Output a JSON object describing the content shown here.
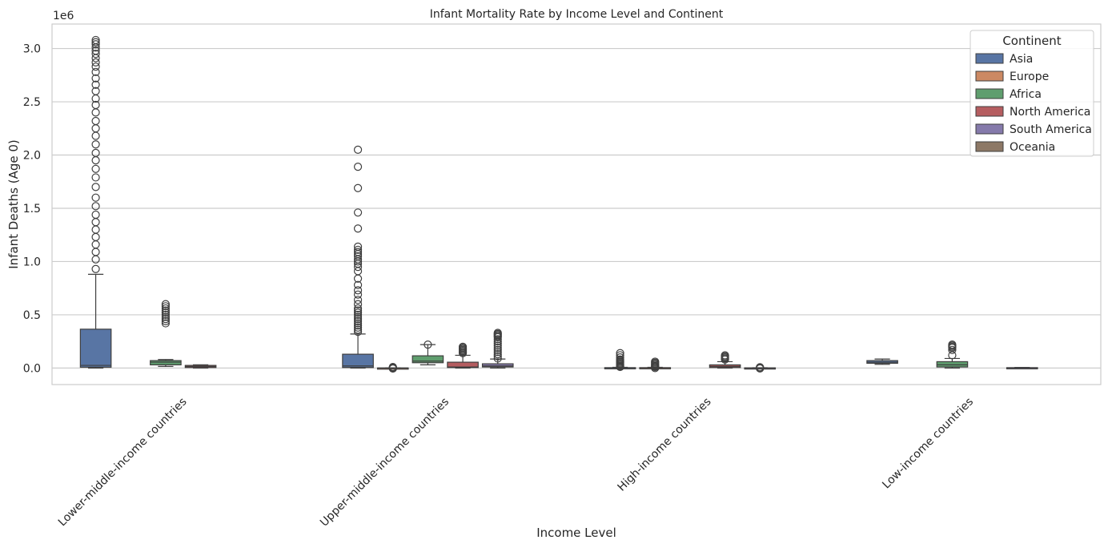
{
  "chart_data": {
    "type": "box",
    "title": "Infant Mortality Rate by Income Level and Continent",
    "xlabel": "Income Level",
    "ylabel": "Infant Deaths (Age 0)",
    "y_scale_label": "1e6",
    "y_unit": 1000000,
    "ylim": [
      -0.155,
      3.23
    ],
    "yticks": [
      0.0,
      0.5,
      1.0,
      1.5,
      2.0,
      2.5,
      3.0
    ],
    "ytick_labels": [
      "0.0",
      "0.5",
      "1.0",
      "1.5",
      "2.0",
      "2.5",
      "3.0"
    ],
    "grid": "y",
    "categories": [
      "Lower-middle-income countries",
      "Upper-middle-income countries",
      "High-income countries",
      "Low-income countries"
    ],
    "legend": {
      "title": "Continent",
      "position": "top-right",
      "entries": [
        "Asia",
        "Europe",
        "Africa",
        "North America",
        "South America",
        "Oceania"
      ]
    },
    "colors": {
      "Asia": "#5875a4",
      "Europe": "#cc8963",
      "Africa": "#5f9e6e",
      "North America": "#b55d60",
      "South America": "#857aab",
      "Oceania": "#8d7866"
    },
    "hue_order": [
      "Asia",
      "Europe",
      "Africa",
      "North America",
      "South America",
      "Oceania"
    ],
    "series": [
      {
        "name": "Asia",
        "values": [
          {
            "category": "Lower-middle-income countries",
            "min": 0.0,
            "q1": 0.008,
            "median": 0.025,
            "q3": 0.365,
            "max": 0.88,
            "outliers": [
              0.93,
              1.02,
              1.09,
              1.16,
              1.23,
              1.3,
              1.37,
              1.44,
              1.52,
              1.6,
              1.7,
              1.79,
              1.87,
              1.95,
              2.02,
              2.1,
              2.18,
              2.25,
              2.32,
              2.4,
              2.47,
              2.53,
              2.6,
              2.66,
              2.72,
              2.78,
              2.83,
              2.87,
              2.91,
              2.95,
              2.98,
              3.01,
              3.04,
              3.06,
              3.08
            ]
          },
          {
            "category": "Upper-middle-income countries",
            "min": 0.0,
            "q1": 0.005,
            "median": 0.02,
            "q3": 0.13,
            "max": 0.32,
            "outliers": [
              0.34,
              0.36,
              0.38,
              0.4,
              0.42,
              0.44,
              0.46,
              0.48,
              0.5,
              0.52,
              0.54,
              0.56,
              0.6,
              0.64,
              0.69,
              0.73,
              0.78,
              0.84,
              0.91,
              0.95,
              0.98,
              1.0,
              1.02,
              1.05,
              1.07,
              1.09,
              1.11,
              1.14,
              1.31,
              1.46,
              1.69,
              1.89,
              2.05
            ]
          },
          {
            "category": "High-income countries",
            "min": 0.0,
            "q1": 0.0,
            "median": 0.002,
            "q3": 0.004,
            "max": 0.007,
            "outliers": [
              0.01,
              0.015,
              0.02,
              0.03,
              0.04,
              0.05,
              0.06,
              0.07,
              0.08,
              0.1,
              0.12,
              0.14
            ]
          },
          {
            "category": "Low-income countries",
            "min": 0.035,
            "q1": 0.045,
            "median": 0.055,
            "q3": 0.07,
            "max": 0.085,
            "outliers": []
          }
        ]
      },
      {
        "name": "Europe",
        "values": [
          {
            "category": "Lower-middle-income countries",
            "empty": true
          },
          {
            "category": "Upper-middle-income countries",
            "min": 0.0,
            "q1": 0.0,
            "median": 0.0,
            "q3": 0.001,
            "max": 0.002,
            "outliers": [
              -0.005,
              0.0,
              0.005,
              0.01
            ]
          },
          {
            "category": "High-income countries",
            "min": 0.0,
            "q1": 0.0,
            "median": 0.002,
            "q3": 0.004,
            "max": 0.007,
            "outliers": [
              0.0,
              0.01,
              0.015,
              0.02,
              0.03,
              0.04,
              0.05,
              0.06
            ]
          },
          {
            "category": "Low-income countries",
            "empty": true
          }
        ]
      },
      {
        "name": "Africa",
        "values": [
          {
            "category": "Lower-middle-income countries",
            "min": 0.015,
            "q1": 0.03,
            "median": 0.055,
            "q3": 0.07,
            "max": 0.08,
            "outliers": [
              0.42,
              0.44,
              0.46,
              0.48,
              0.5,
              0.52,
              0.54,
              0.56,
              0.58,
              0.6
            ]
          },
          {
            "category": "Upper-middle-income countries",
            "min": 0.03,
            "q1": 0.05,
            "median": 0.065,
            "q3": 0.115,
            "max": 0.22,
            "outliers": [
              0.22
            ]
          },
          {
            "category": "High-income countries",
            "empty": true
          },
          {
            "category": "Low-income countries",
            "min": 0.0,
            "q1": 0.01,
            "median": 0.03,
            "q3": 0.06,
            "max": 0.09,
            "outliers": [
              0.12,
              0.17,
              0.19,
              0.2,
              0.21,
              0.22
            ]
          }
        ]
      },
      {
        "name": "North America",
        "values": [
          {
            "category": "Lower-middle-income countries",
            "min": 0.0,
            "q1": 0.005,
            "median": 0.015,
            "q3": 0.025,
            "max": 0.03,
            "outliers": []
          },
          {
            "category": "Upper-middle-income countries",
            "min": 0.0,
            "q1": 0.005,
            "median": 0.01,
            "q3": 0.055,
            "max": 0.12,
            "outliers": [
              0.14,
              0.15,
              0.16,
              0.17,
              0.18,
              0.19,
              0.2
            ]
          },
          {
            "category": "High-income countries",
            "min": 0.0,
            "q1": 0.005,
            "median": 0.015,
            "q3": 0.03,
            "max": 0.06,
            "outliers": [
              0.08,
              0.09,
              0.1,
              0.11,
              0.12
            ]
          },
          {
            "category": "Low-income countries",
            "empty": true
          }
        ]
      },
      {
        "name": "South America",
        "values": [
          {
            "category": "Lower-middle-income countries",
            "empty": true
          },
          {
            "category": "Upper-middle-income countries",
            "min": 0.0,
            "q1": 0.01,
            "median": 0.02,
            "q3": 0.04,
            "max": 0.085,
            "outliers": [
              0.09,
              0.11,
              0.13,
              0.15,
              0.17,
              0.19,
              0.21,
              0.23,
              0.25,
              0.27,
              0.29,
              0.3,
              0.31,
              0.32,
              0.33
            ]
          },
          {
            "category": "High-income countries",
            "min": -0.002,
            "q1": 0.0,
            "median": 0.001,
            "q3": 0.002,
            "max": 0.003,
            "outliers": [
              -0.004,
              0.004,
              0.008
            ]
          },
          {
            "category": "Low-income countries",
            "min": 0.0,
            "q1": 0.001,
            "median": 0.002,
            "q3": 0.004,
            "max": 0.006,
            "outliers": []
          }
        ]
      },
      {
        "name": "Oceania",
        "values": [
          {
            "category": "Lower-middle-income countries",
            "empty": true
          },
          {
            "category": "Upper-middle-income countries",
            "empty": true
          },
          {
            "category": "High-income countries",
            "empty": true
          },
          {
            "category": "Low-income countries",
            "empty": true
          }
        ]
      }
    ]
  }
}
